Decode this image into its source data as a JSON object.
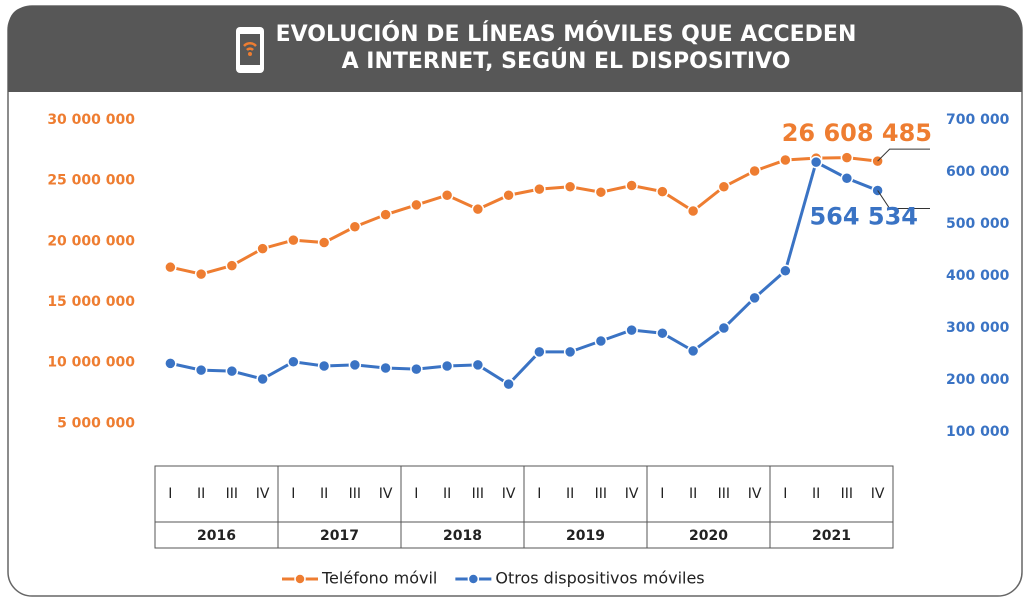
{
  "chart_data": {
    "type": "line",
    "title_lines": [
      "EVOLUCIÓN DE LÍNEAS MÓVILES QUE ACCEDEN",
      "A INTERNET, SEGÚN EL DISPOSITIVO"
    ],
    "categories": [
      "I",
      "II",
      "III",
      "IV",
      "I",
      "II",
      "III",
      "IV",
      "I",
      "II",
      "III",
      "IV",
      "I",
      "II",
      "III",
      "IV",
      "I",
      "II",
      "III",
      "IV",
      "I",
      "II",
      "III",
      "IV"
    ],
    "years": [
      "2016",
      "2017",
      "2018",
      "2019",
      "2020",
      "2021"
    ],
    "series": [
      {
        "name": "Teléfono móvil",
        "color": "#ee7d31",
        "axis": "y",
        "values": [
          17870000,
          17300000,
          18000000,
          19400000,
          20100000,
          19900000,
          21200000,
          22200000,
          23000000,
          23800000,
          22650000,
          23800000,
          24300000,
          24500000,
          24050000,
          24600000,
          24100000,
          22500000,
          24500000,
          25800000,
          26700000,
          26860000,
          26900000,
          26608485
        ],
        "value_labels": [
          null,
          null,
          null,
          null,
          null,
          null,
          null,
          null,
          null,
          null,
          null,
          null,
          null,
          null,
          null,
          null,
          null,
          null,
          null,
          null,
          null,
          null,
          null,
          "26 608 485"
        ]
      },
      {
        "name": "Otros dispositivos móviles",
        "color": "#3a73c4",
        "axis": "y2",
        "values": [
          232000,
          219000,
          217000,
          202000,
          235000,
          227000,
          229000,
          223000,
          221000,
          227000,
          229000,
          192000,
          254000,
          254000,
          275000,
          296000,
          290000,
          256000,
          300000,
          358000,
          410000,
          619000,
          588000,
          564534
        ],
        "value_labels": [
          null,
          null,
          null,
          null,
          null,
          null,
          null,
          null,
          null,
          null,
          null,
          null,
          null,
          null,
          null,
          null,
          null,
          null,
          null,
          null,
          null,
          null,
          null,
          "564 534"
        ]
      }
    ],
    "ylim": [
      0,
      30000000
    ],
    "yticks": [
      {
        "value": 5000000,
        "label": "5 000 000"
      },
      {
        "value": 10000000,
        "label": "10 000 000"
      },
      {
        "value": 15000000,
        "label": "15 000 000"
      },
      {
        "value": 20000000,
        "label": "20 000 000"
      },
      {
        "value": 25000000,
        "label": "25 000 000"
      },
      {
        "value": 30000000,
        "label": "30 000 000"
      }
    ],
    "y2lim": [
      0,
      700000
    ],
    "y2ticks": [
      {
        "value": 100000,
        "label": "100 000"
      },
      {
        "value": 200000,
        "label": "200 000"
      },
      {
        "value": 300000,
        "label": "300 000"
      },
      {
        "value": 400000,
        "label": "400 000"
      },
      {
        "value": 500000,
        "label": "500 000"
      },
      {
        "value": 600000,
        "label": "600 000"
      },
      {
        "value": 700000,
        "label": "700 000"
      }
    ],
    "grid": false
  }
}
